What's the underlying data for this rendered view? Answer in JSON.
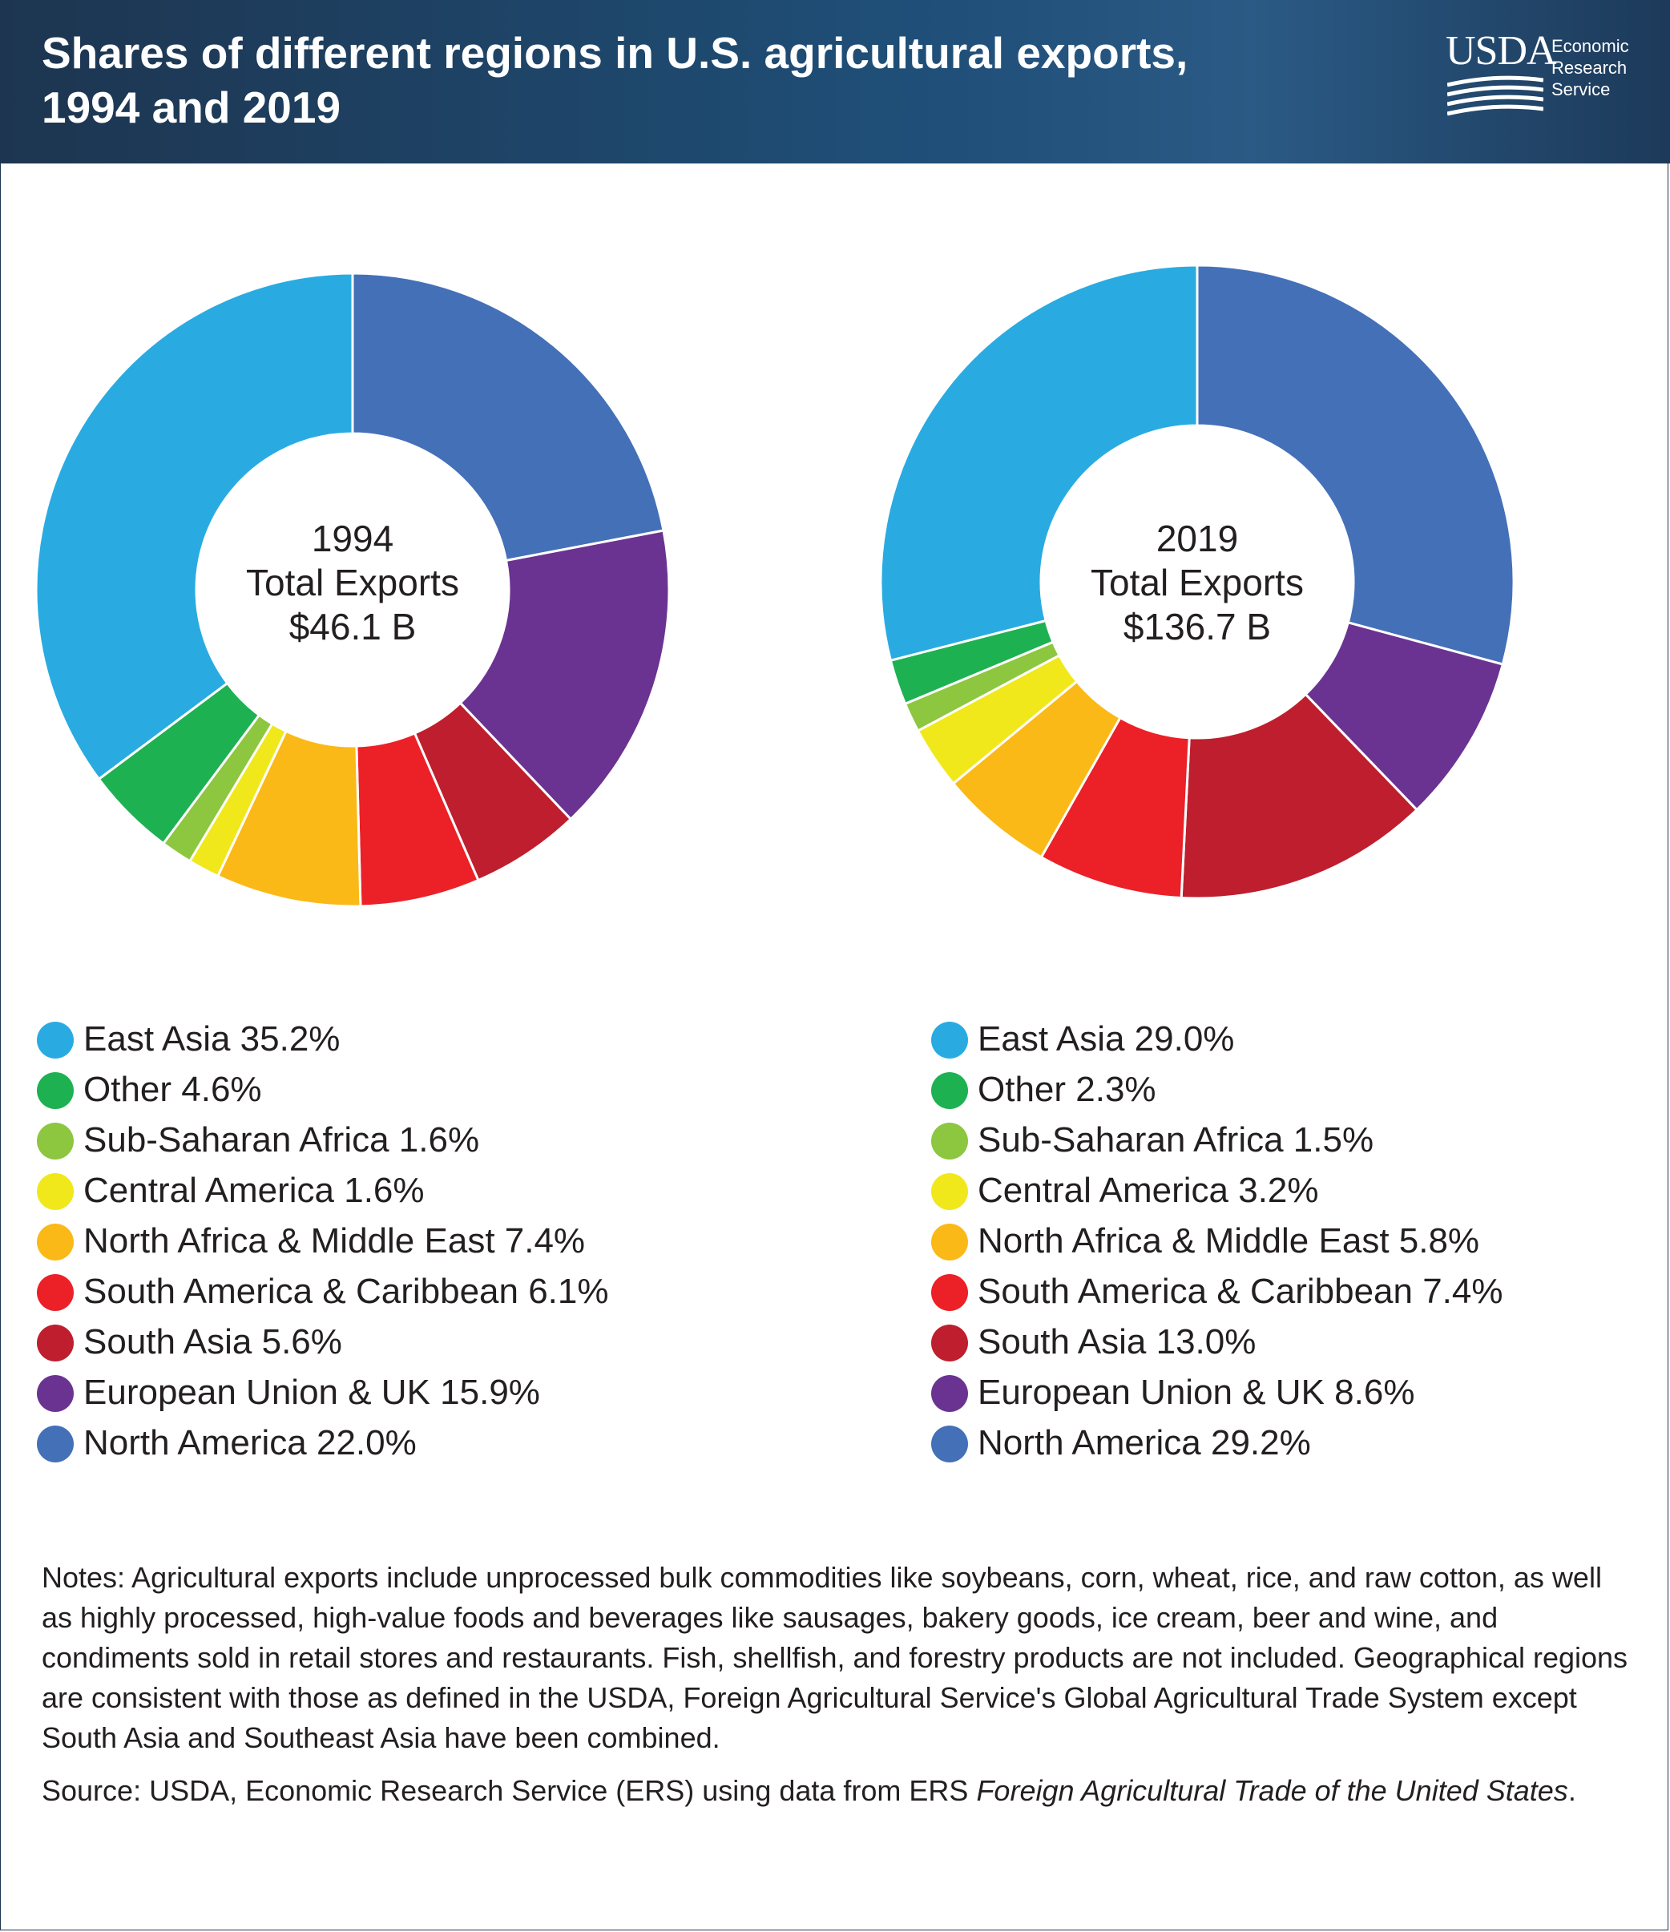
{
  "header": {
    "title_line1": "Shares of different regions in U.S. agricultural exports,",
    "title_line2": "1994 and 2019",
    "logo_abbr": "USDA",
    "logo_line1": "Economic",
    "logo_line2": "Research",
    "logo_line3": "Service"
  },
  "colors": {
    "header_bg": "#1d3550",
    "East Asia": "#29abe2",
    "Other": "#1eb152",
    "Sub-Saharan Africa": "#8dc63f",
    "Central America": "#f0e81b",
    "North Africa & Middle East": "#fbb917",
    "South America & Caribbean": "#ec2027",
    "South Asia": "#be1e2d",
    "European Union & UK": "#6b3391",
    "North America": "#4470b8"
  },
  "chart_data": [
    {
      "type": "pie",
      "donut": true,
      "center_year": "1994",
      "center_label": "Total Exports",
      "center_total": "$46.1 B",
      "unit": "%",
      "slices": [
        {
          "name": "North America",
          "value": 22.0,
          "legend": "North America 22.0%"
        },
        {
          "name": "European Union & UK",
          "value": 15.9,
          "legend": "European Union & UK 15.9%"
        },
        {
          "name": "South Asia",
          "value": 5.6,
          "legend": "South Asia 5.6%"
        },
        {
          "name": "South America & Caribbean",
          "value": 6.1,
          "legend": "South America & Caribbean 6.1%"
        },
        {
          "name": "North Africa & Middle East",
          "value": 7.4,
          "legend": "North Africa & Middle East 7.4%"
        },
        {
          "name": "Central America",
          "value": 1.6,
          "legend": "Central America 1.6%"
        },
        {
          "name": "Sub-Saharan Africa",
          "value": 1.6,
          "legend": "Sub-Saharan Africa 1.6%"
        },
        {
          "name": "Other",
          "value": 4.6,
          "legend": "Other 4.6%"
        },
        {
          "name": "East Asia",
          "value": 35.2,
          "legend": "East Asia 35.2%"
        }
      ]
    },
    {
      "type": "pie",
      "donut": true,
      "center_year": "2019",
      "center_label": "Total Exports",
      "center_total": "$136.7 B",
      "unit": "%",
      "slices": [
        {
          "name": "North America",
          "value": 29.2,
          "legend": "North America 29.2%"
        },
        {
          "name": "European Union & UK",
          "value": 8.6,
          "legend": "European Union & UK 8.6%"
        },
        {
          "name": "South Asia",
          "value": 13.0,
          "legend": "South Asia 13.0%"
        },
        {
          "name": "South America & Caribbean",
          "value": 7.4,
          "legend": "South America & Caribbean 7.4%"
        },
        {
          "name": "North Africa & Middle East",
          "value": 5.8,
          "legend": "North Africa & Middle East 5.8%"
        },
        {
          "name": "Central America",
          "value": 3.2,
          "legend": "Central America 3.2%"
        },
        {
          "name": "Sub-Saharan Africa",
          "value": 1.5,
          "legend": "Sub-Saharan Africa 1.5%"
        },
        {
          "name": "Other",
          "value": 2.3,
          "legend": "Other 2.3%"
        },
        {
          "name": "East Asia",
          "value": 29.0,
          "legend": "East Asia 29.0%"
        }
      ]
    }
  ],
  "legend_order": [
    "East Asia",
    "Other",
    "Sub-Saharan Africa",
    "Central America",
    "North Africa & Middle East",
    "South America & Caribbean",
    "South Asia",
    "European Union & UK",
    "North America"
  ],
  "notes": {
    "text": "Notes: Agricultural exports include unprocessed bulk commodities like soybeans, corn, wheat, rice, and raw cotton, as well as highly processed, high-value foods and beverages like sausages, bakery goods, ice cream, beer and wine, and condiments sold in retail stores and restaurants. Fish, shellfish, and forestry products are not included. Geographical regions are consistent with those as defined in the USDA, Foreign Agricultural Service's Global Agricultural Trade System except South Asia and Southeast Asia have been combined.",
    "source_prefix": "Source: USDA, Economic Research Service (ERS) using data from ERS ",
    "source_italic": "Foreign Agricultural Trade of the United States",
    "source_suffix": "."
  }
}
